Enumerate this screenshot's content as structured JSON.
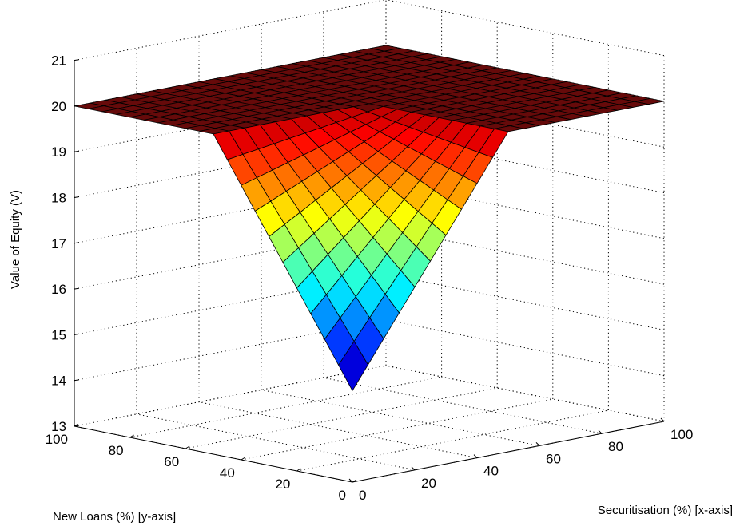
{
  "chart_data": {
    "type": "surface",
    "title": "",
    "xlabel": "Securitisation (%) [x-axis]",
    "ylabel": "New Loans (%) [y-axis]",
    "zlabel": "Value of Equity (V)",
    "xlim": [
      0,
      100
    ],
    "ylim": [
      0,
      100
    ],
    "zlim": [
      13,
      21
    ],
    "xticks": [
      "0",
      "20",
      "40",
      "60",
      "80",
      "100"
    ],
    "yticks": [
      "0",
      "20",
      "40",
      "60",
      "80",
      "100"
    ],
    "zticks": [
      "13",
      "14",
      "15",
      "16",
      "17",
      "18",
      "19",
      "20",
      "21"
    ],
    "grid": true,
    "colormap": "jet",
    "mesh": {
      "x_start": 0,
      "x_end": 100,
      "x_step": 5,
      "y_start": 0,
      "y_end": 100,
      "y_step": 5
    },
    "surface_model": "V = 20 - 5 * max(0, 1 - x/50) * max(0, 1 - y/50)",
    "key_values": [
      {
        "x": 0,
        "y": 0,
        "z": 15.0
      },
      {
        "x": 10,
        "y": 10,
        "z": 16.8
      },
      {
        "x": 20,
        "y": 20,
        "z": 18.2
      },
      {
        "x": 30,
        "y": 30,
        "z": 19.2
      },
      {
        "x": 50,
        "y": 50,
        "z": 20.0
      },
      {
        "x": 100,
        "y": 100,
        "z": 20.0
      }
    ]
  }
}
